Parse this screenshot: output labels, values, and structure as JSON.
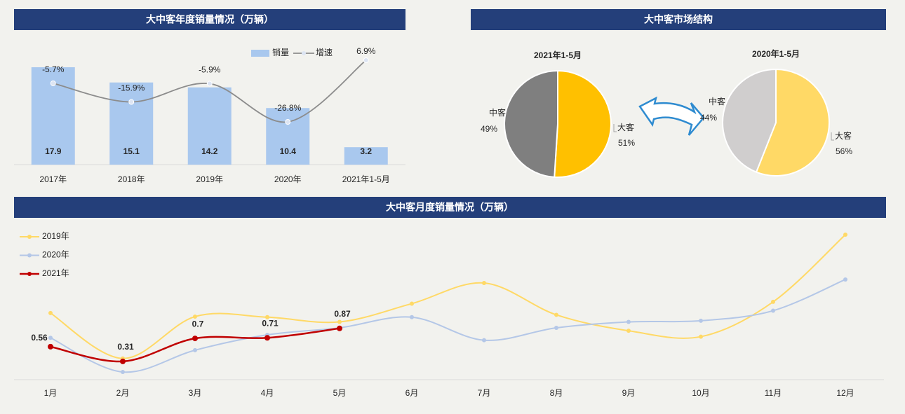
{
  "chart_data": [
    {
      "type": "bar",
      "title": "大中客年度销量情况（万辆）",
      "categories": [
        "2017年",
        "2018年",
        "2019年",
        "2020年",
        "2021年1-5月"
      ],
      "series": [
        {
          "name": "销量",
          "type": "bar",
          "color": "#a9c8ee",
          "values": [
            17.9,
            15.1,
            14.2,
            10.4,
            3.2
          ]
        },
        {
          "name": "增速",
          "type": "line",
          "axis": "y2",
          "color": "#8c8c8c",
          "values": [
            -5.7,
            -15.9,
            -5.9,
            -26.8,
            6.9
          ],
          "value_labels": [
            "-5.7%",
            "-15.9%",
            "-5.9%",
            "-26.8%",
            "6.9%"
          ]
        }
      ]
    },
    {
      "type": "pie",
      "title": "大中客市场结构",
      "pies": [
        {
          "title": "2021年1-5月",
          "categories": [
            "大客",
            "中客"
          ],
          "values": [
            51,
            49
          ],
          "value_labels": [
            "51%",
            "49%"
          ],
          "colors": [
            "#ffc000",
            "#7f7f7f"
          ]
        },
        {
          "title": "2020年1-5月",
          "categories": [
            "大客",
            "中客"
          ],
          "values": [
            56,
            44
          ],
          "value_labels": [
            "56%",
            "44%"
          ],
          "colors": [
            "#ffd966",
            "#d0cece"
          ]
        }
      ]
    },
    {
      "type": "line",
      "title": "大中客月度销量情况（万辆）",
      "categories": [
        "1月",
        "2月",
        "3月",
        "4月",
        "5月",
        "6月",
        "7月",
        "8月",
        "9月",
        "10月",
        "11月",
        "12月"
      ],
      "series": [
        {
          "name": "2019年",
          "color": "#ffd966",
          "values": [
            1.13,
            0.36,
            1.07,
            1.06,
            0.98,
            1.29,
            1.64,
            1.1,
            0.83,
            0.73,
            1.32,
            2.46
          ]
        },
        {
          "name": "2020年",
          "color": "#b4c7e7",
          "values": [
            0.71,
            0.13,
            0.5,
            0.76,
            0.88,
            1.06,
            0.67,
            0.88,
            0.98,
            1.0,
            1.17,
            1.7
          ]
        },
        {
          "name": "2021年",
          "color": "#c00000",
          "values": [
            0.56,
            0.31,
            0.7,
            0.71,
            0.87,
            null,
            null,
            null,
            null,
            null,
            null,
            null
          ],
          "labeled": true
        }
      ]
    }
  ]
}
